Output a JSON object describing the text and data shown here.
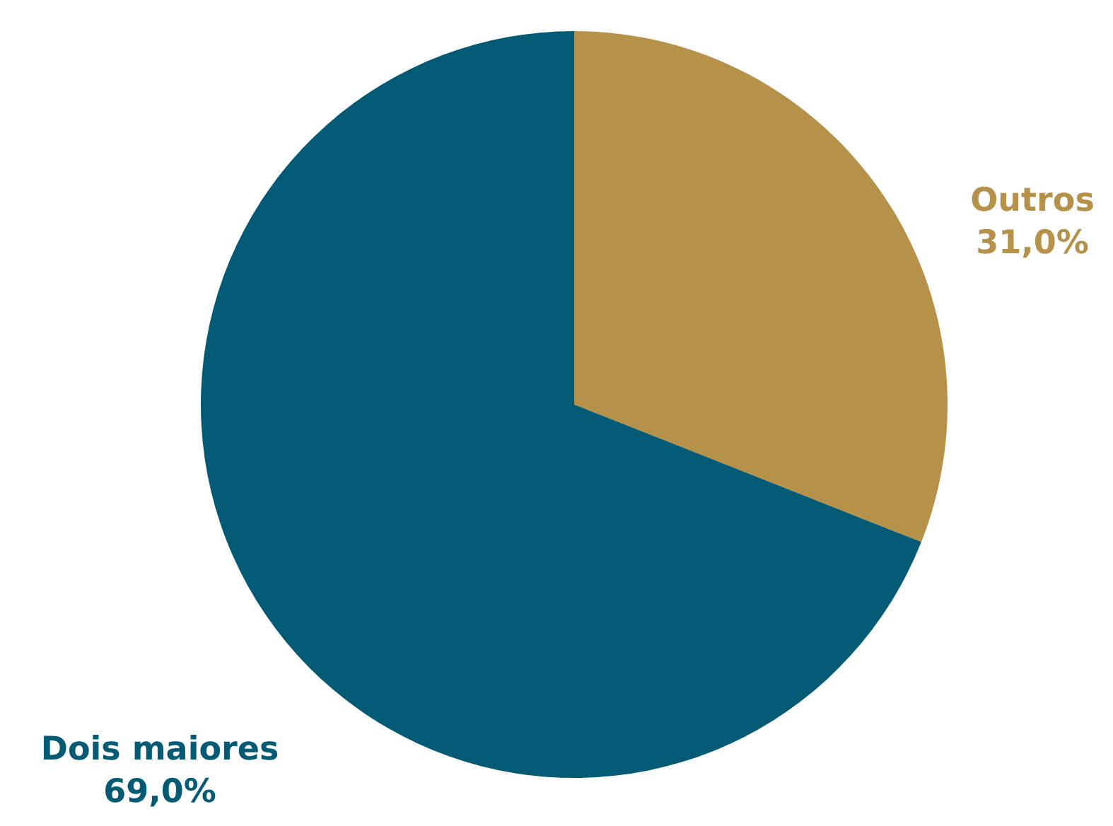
{
  "chart_data": {
    "type": "pie",
    "categories": [
      "Outros",
      "Dois maiores"
    ],
    "values": [
      31.0,
      69.0
    ],
    "colors": [
      "#b5914a",
      "#035a74"
    ],
    "value_labels": [
      "31,0%",
      "69,0%"
    ],
    "legend": false
  }
}
